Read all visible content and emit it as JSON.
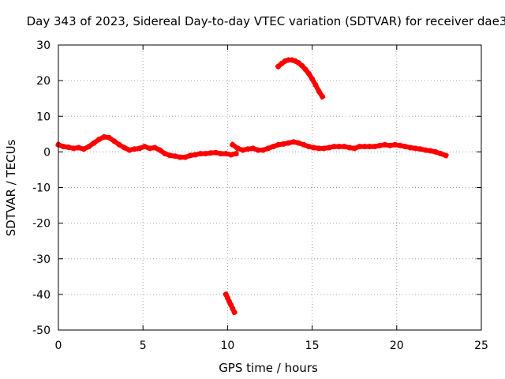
{
  "chart_data": {
    "type": "line",
    "title": "Day 343 of 2023, Sidereal Day-to-day VTEC variation (SDTVAR) for receiver dae3",
    "xlabel": "GPS time / hours",
    "ylabel": "SDTVAR / TECUs",
    "xlim": [
      0,
      25
    ],
    "ylim": [
      -50,
      30
    ],
    "xticks": [
      0,
      5,
      10,
      15,
      20,
      25
    ],
    "yticks": [
      -50,
      -40,
      -30,
      -20,
      -10,
      0,
      10,
      20,
      30
    ],
    "grid": true,
    "legend": "none",
    "series_color": "#ff0000",
    "series": [
      {
        "name": "main-trace",
        "x": [
          0.0,
          0.3,
          0.6,
          0.9,
          1.2,
          1.5,
          1.8,
          2.1,
          2.4,
          2.7,
          3.0,
          3.3,
          3.6,
          3.9,
          4.2,
          4.5,
          4.8,
          5.1,
          5.4,
          5.7,
          6.0,
          6.3,
          6.6,
          6.9,
          7.2,
          7.5,
          7.8,
          8.1,
          8.4,
          8.7,
          9.0,
          9.3,
          9.6,
          9.9,
          10.2,
          10.5
        ],
        "y": [
          2.0,
          1.5,
          1.3,
          1.0,
          1.2,
          0.8,
          1.5,
          2.5,
          3.5,
          4.2,
          4.0,
          3.0,
          2.0,
          1.2,
          0.5,
          0.8,
          1.0,
          1.5,
          1.0,
          1.2,
          0.5,
          -0.5,
          -1.0,
          -1.2,
          -1.5,
          -1.5,
          -1.0,
          -0.8,
          -0.5,
          -0.5,
          -0.3,
          -0.2,
          -0.5,
          -0.5,
          -0.8,
          -0.5
        ]
      },
      {
        "name": "main-trace-2",
        "x": [
          10.3,
          10.6,
          10.9,
          11.2,
          11.5,
          11.8,
          12.1,
          12.4,
          12.7,
          13.0,
          13.3,
          13.6,
          13.9,
          14.2,
          14.5,
          14.8,
          15.1,
          15.4,
          15.7,
          16.0,
          16.3,
          16.6,
          16.9,
          17.2,
          17.5,
          17.8,
          18.1,
          18.4,
          18.7,
          19.0,
          19.3,
          19.6,
          19.9,
          20.2,
          20.5,
          20.8,
          21.1,
          21.4,
          21.7,
          22.0,
          22.3,
          22.6,
          22.9
        ],
        "y": [
          2.0,
          1.0,
          0.5,
          0.8,
          1.0,
          0.5,
          0.5,
          1.0,
          1.5,
          2.0,
          2.2,
          2.5,
          2.8,
          2.5,
          2.0,
          1.5,
          1.2,
          1.0,
          1.0,
          1.2,
          1.5,
          1.5,
          1.5,
          1.2,
          1.0,
          1.5,
          1.5,
          1.5,
          1.5,
          1.8,
          2.0,
          1.8,
          2.0,
          1.8,
          1.5,
          1.2,
          1.0,
          0.8,
          0.5,
          0.3,
          0.0,
          -0.5,
          -1.0
        ]
      },
      {
        "name": "arc-upper",
        "x": [
          13.0,
          13.2,
          13.4,
          13.6,
          13.8,
          14.0,
          14.2,
          14.4,
          14.6,
          14.8,
          15.0,
          15.2,
          15.4,
          15.6
        ],
        "y": [
          24.0,
          24.8,
          25.5,
          25.8,
          25.8,
          25.5,
          25.0,
          24.2,
          23.2,
          22.0,
          20.5,
          18.8,
          17.0,
          15.5
        ]
      },
      {
        "name": "drop-lower",
        "x": [
          9.9,
          10.0,
          10.1,
          10.2,
          10.3,
          10.4
        ],
        "y": [
          -40.0,
          -41.0,
          -42.0,
          -43.0,
          -44.0,
          -45.0
        ]
      }
    ]
  }
}
